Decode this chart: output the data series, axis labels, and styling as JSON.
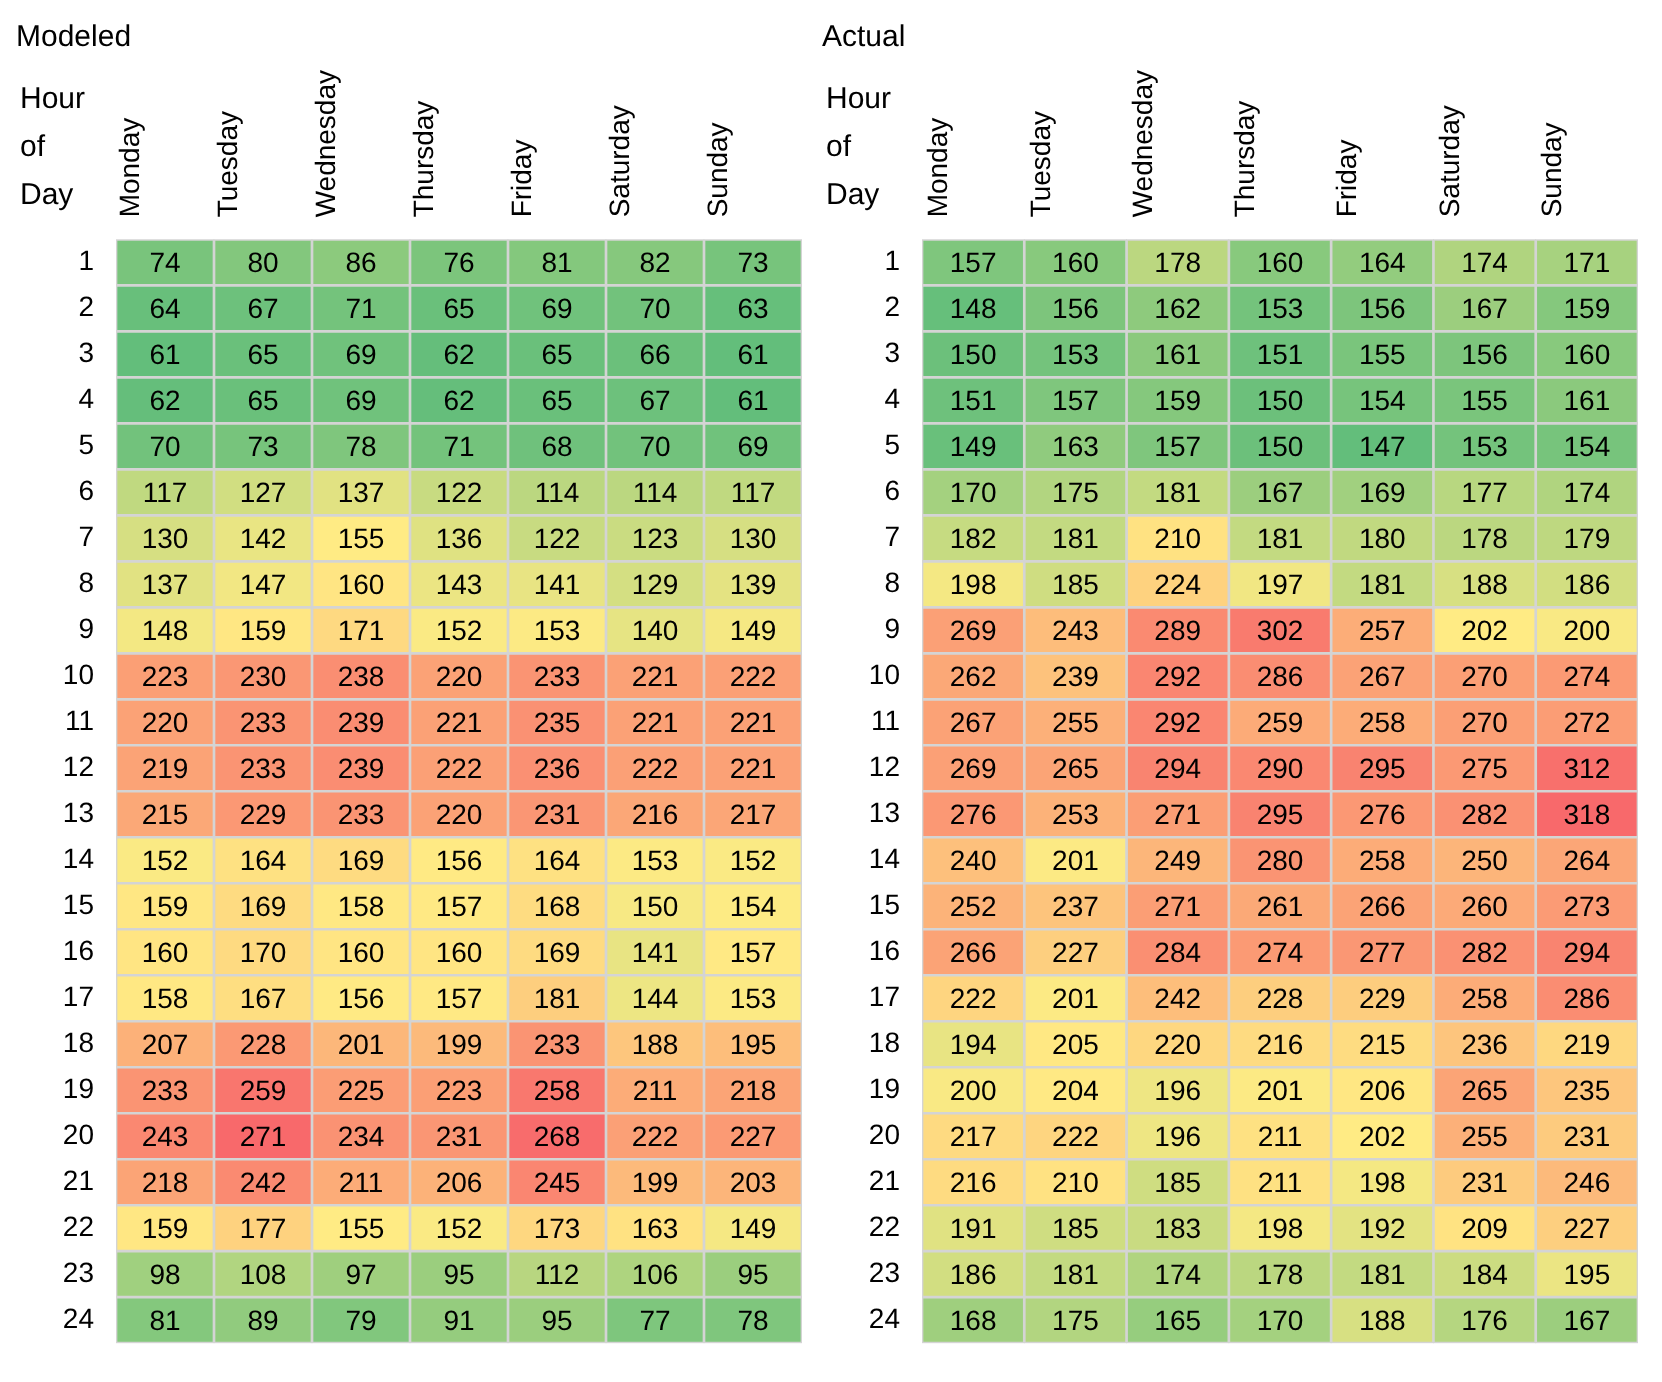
{
  "chart_data": [
    {
      "type": "heatmap",
      "title": "Modeled",
      "ylabel": "Hour of Day",
      "data_labels": true,
      "colors": [
        "#63be7b",
        "#ffeb84",
        "#f8696b"
      ],
      "categories": [
        "Monday",
        "Tuesday",
        "Wednesday",
        "Thursday",
        "Friday",
        "Saturday",
        "Sunday"
      ],
      "y_categories": [
        "1",
        "2",
        "3",
        "4",
        "5",
        "6",
        "7",
        "8",
        "9",
        "10",
        "11",
        "12",
        "13",
        "14",
        "15",
        "16",
        "17",
        "18",
        "19",
        "20",
        "21",
        "22",
        "23",
        "24"
      ],
      "cells": [
        [
          74,
          80,
          86,
          76,
          81,
          82,
          73
        ],
        [
          64,
          67,
          71,
          65,
          69,
          70,
          63
        ],
        [
          61,
          65,
          69,
          62,
          65,
          66,
          61
        ],
        [
          62,
          65,
          69,
          62,
          65,
          67,
          61
        ],
        [
          70,
          73,
          78,
          71,
          68,
          70,
          69
        ],
        [
          117,
          127,
          137,
          122,
          114,
          114,
          117
        ],
        [
          130,
          142,
          155,
          136,
          122,
          123,
          130
        ],
        [
          137,
          147,
          160,
          143,
          141,
          129,
          139
        ],
        [
          148,
          159,
          171,
          152,
          153,
          140,
          149
        ],
        [
          223,
          230,
          238,
          220,
          233,
          221,
          222
        ],
        [
          220,
          233,
          239,
          221,
          235,
          221,
          221
        ],
        [
          219,
          233,
          239,
          222,
          236,
          222,
          221
        ],
        [
          215,
          229,
          233,
          220,
          231,
          216,
          217
        ],
        [
          152,
          164,
          169,
          156,
          164,
          153,
          152
        ],
        [
          159,
          169,
          158,
          157,
          168,
          150,
          154
        ],
        [
          160,
          170,
          160,
          160,
          169,
          141,
          157
        ],
        [
          158,
          167,
          156,
          157,
          181,
          144,
          153
        ],
        [
          207,
          228,
          201,
          199,
          233,
          188,
          195
        ],
        [
          233,
          259,
          225,
          223,
          258,
          211,
          218
        ],
        [
          243,
          271,
          234,
          231,
          268,
          222,
          227
        ],
        [
          218,
          242,
          211,
          206,
          245,
          199,
          203
        ],
        [
          159,
          177,
          155,
          152,
          173,
          163,
          149
        ],
        [
          98,
          108,
          97,
          95,
          112,
          106,
          95
        ],
        [
          81,
          89,
          79,
          91,
          95,
          77,
          78
        ]
      ]
    },
    {
      "type": "heatmap",
      "title": "Actual",
      "ylabel": "Hour of Day",
      "data_labels": true,
      "colors": [
        "#63be7b",
        "#ffeb84",
        "#f8696b"
      ],
      "categories": [
        "Monday",
        "Tuesday",
        "Wednesday",
        "Thursday",
        "Friday",
        "Saturday",
        "Sunday"
      ],
      "y_categories": [
        "1",
        "2",
        "3",
        "4",
        "5",
        "6",
        "7",
        "8",
        "9",
        "10",
        "11",
        "12",
        "13",
        "14",
        "15",
        "16",
        "17",
        "18",
        "19",
        "20",
        "21",
        "22",
        "23",
        "24"
      ],
      "cells": [
        [
          157,
          160,
          178,
          160,
          164,
          174,
          171
        ],
        [
          148,
          156,
          162,
          153,
          156,
          167,
          159
        ],
        [
          150,
          153,
          161,
          151,
          155,
          156,
          160
        ],
        [
          151,
          157,
          159,
          150,
          154,
          155,
          161
        ],
        [
          149,
          163,
          157,
          150,
          147,
          153,
          154
        ],
        [
          170,
          175,
          181,
          167,
          169,
          177,
          174
        ],
        [
          182,
          181,
          210,
          181,
          180,
          178,
          179
        ],
        [
          198,
          185,
          224,
          197,
          181,
          188,
          186
        ],
        [
          269,
          243,
          289,
          302,
          257,
          202,
          200
        ],
        [
          262,
          239,
          292,
          286,
          267,
          270,
          274
        ],
        [
          267,
          255,
          292,
          259,
          258,
          270,
          272
        ],
        [
          269,
          265,
          294,
          290,
          295,
          275,
          312
        ],
        [
          276,
          253,
          271,
          295,
          276,
          282,
          318
        ],
        [
          240,
          201,
          249,
          280,
          258,
          250,
          264
        ],
        [
          252,
          237,
          271,
          261,
          266,
          260,
          273
        ],
        [
          266,
          227,
          284,
          274,
          277,
          282,
          294
        ],
        [
          222,
          201,
          242,
          228,
          229,
          258,
          286
        ],
        [
          194,
          205,
          220,
          216,
          215,
          236,
          219
        ],
        [
          200,
          204,
          196,
          201,
          206,
          265,
          235
        ],
        [
          217,
          222,
          196,
          211,
          202,
          255,
          231
        ],
        [
          216,
          210,
          185,
          211,
          198,
          231,
          246
        ],
        [
          191,
          185,
          183,
          198,
          192,
          209,
          227
        ],
        [
          186,
          181,
          174,
          178,
          181,
          184,
          195
        ],
        [
          168,
          175,
          165,
          170,
          188,
          176,
          167
        ]
      ]
    }
  ]
}
